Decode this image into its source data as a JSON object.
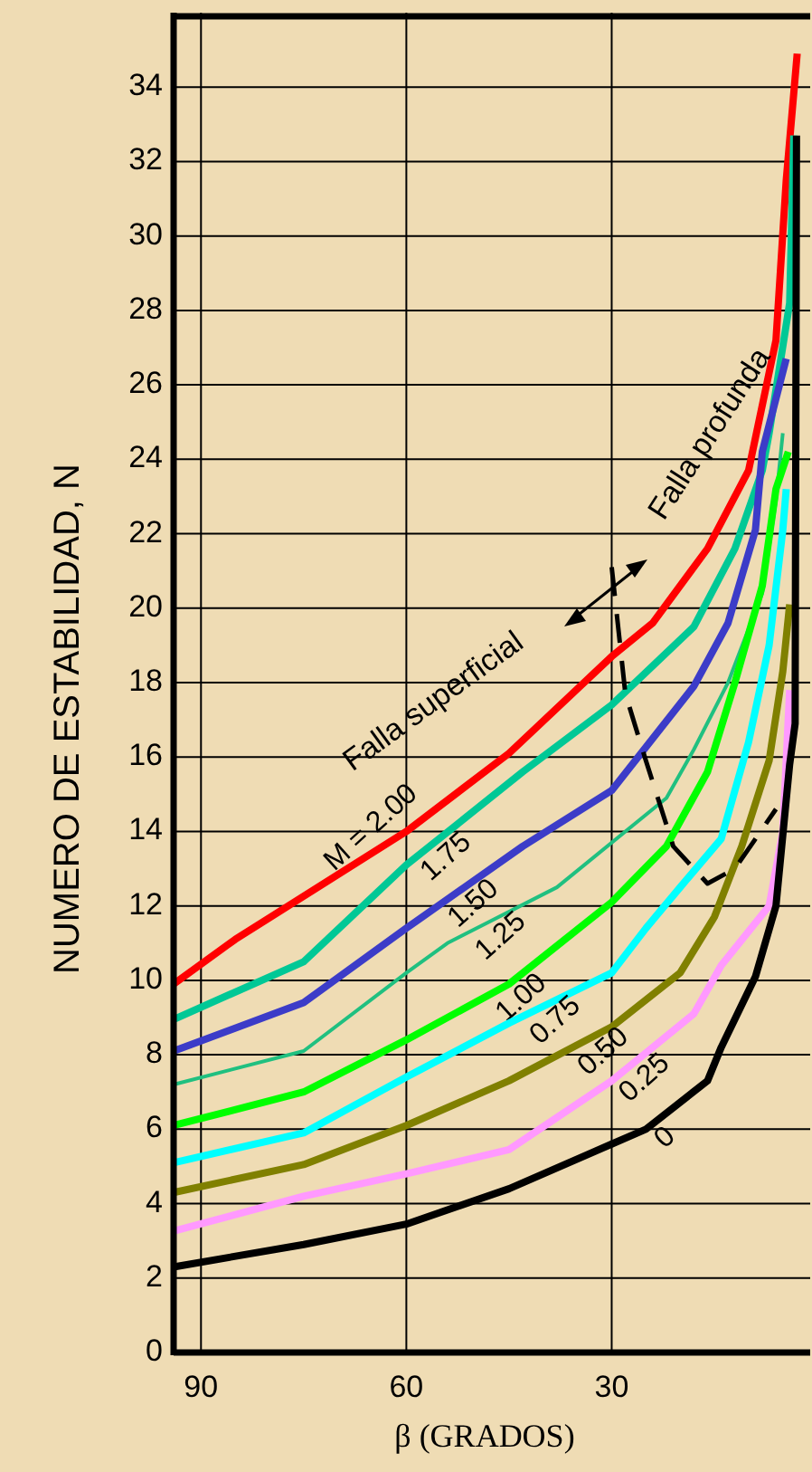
{
  "chart_data": {
    "type": "line",
    "xlabel": "β (GRADOS)",
    "ylabel": "NUMERO DE ESTABILIDAD, N",
    "xlim": [
      94,
      1
    ],
    "xticks": [
      90,
      60,
      30
    ],
    "ylim": [
      0,
      36
    ],
    "yticks": [
      0,
      2,
      4,
      6,
      8,
      10,
      12,
      14,
      16,
      18,
      20,
      22,
      24,
      26,
      28,
      30,
      32,
      34
    ],
    "grid": true,
    "annotations": [
      "Falla superficial",
      "Falla profunda"
    ],
    "series": [
      {
        "name": "M = 2.00",
        "color": "#ff0000",
        "x": [
          94,
          85,
          60,
          45,
          30,
          24,
          16,
          10,
          6,
          4.5,
          2.9
        ],
        "values": [
          9.9,
          11.1,
          14.0,
          16.1,
          18.7,
          19.6,
          21.6,
          23.7,
          27.2,
          31.5,
          34.9
        ]
      },
      {
        "name": "1.75",
        "color": "#00c896",
        "x": [
          94,
          75,
          60,
          43,
          30,
          18,
          12,
          8,
          7,
          4,
          3.4
        ],
        "values": [
          8.95,
          10.5,
          13.1,
          15.6,
          17.4,
          19.5,
          21.6,
          23.7,
          24.7,
          28.2,
          32.7
        ]
      },
      {
        "name": "1.50",
        "color": "#3c3cc8",
        "x": [
          94,
          75,
          60,
          43,
          30,
          18,
          13,
          9,
          8,
          4.5
        ],
        "values": [
          8.1,
          9.4,
          11.4,
          13.6,
          15.1,
          17.9,
          19.6,
          22.1,
          24.2,
          26.7
        ]
      },
      {
        "name": "1.25",
        "color": "#20c080",
        "x": [
          94,
          75,
          60,
          54,
          38,
          22,
          18,
          13,
          8,
          6,
          5
        ],
        "values": [
          7.2,
          8.1,
          10.2,
          11.0,
          12.5,
          14.9,
          16.2,
          18.0,
          20.4,
          22.9,
          24.7
        ]
      },
      {
        "name": "1.00",
        "color": "#00ff00",
        "x": [
          94,
          75,
          60,
          45,
          30,
          22,
          16,
          12,
          8,
          6,
          4.2
        ],
        "values": [
          6.1,
          7.0,
          8.4,
          9.9,
          12.1,
          13.6,
          15.6,
          18.0,
          20.6,
          23.2,
          24.2
        ]
      },
      {
        "name": "0.75",
        "color": "#00ffff",
        "x": [
          94,
          75,
          60,
          45,
          30,
          25,
          20,
          14,
          10,
          7,
          5,
          4.5
        ],
        "values": [
          5.1,
          5.9,
          7.4,
          8.85,
          10.2,
          11.4,
          12.5,
          13.8,
          16.4,
          19.0,
          22.1,
          23.2
        ]
      },
      {
        "name": "0.50",
        "color": "#808000",
        "x": [
          94,
          75,
          60,
          45,
          30,
          20,
          15,
          11,
          7,
          5,
          4
        ],
        "values": [
          4.3,
          5.05,
          6.1,
          7.3,
          8.75,
          10.2,
          11.7,
          13.6,
          15.9,
          18.3,
          20.1
        ]
      },
      {
        "name": "0.25",
        "color": "#ff99ff",
        "x": [
          94,
          75,
          60,
          45,
          30,
          18,
          14,
          7,
          5,
          4
        ],
        "values": [
          3.26,
          4.2,
          4.8,
          5.45,
          7.3,
          9.1,
          10.4,
          12.0,
          14.0,
          17.8
        ]
      },
      {
        "name": "0",
        "color": "#000000",
        "x": [
          94,
          75,
          60,
          45,
          30,
          25,
          16,
          14,
          9,
          6,
          4,
          3.2,
          3
        ],
        "values": [
          2.3,
          2.9,
          3.45,
          4.4,
          5.6,
          6.0,
          7.3,
          8.2,
          10.1,
          12.0,
          15.8,
          16.9,
          32.7
        ]
      },
      {
        "color": "#000000",
        "line_style": "dashed",
        "x": [
          30,
          28,
          25,
          21,
          16,
          12,
          6
        ],
        "values": [
          21.1,
          17.7,
          15.9,
          13.6,
          12.6,
          13.0,
          14.6
        ]
      }
    ]
  }
}
